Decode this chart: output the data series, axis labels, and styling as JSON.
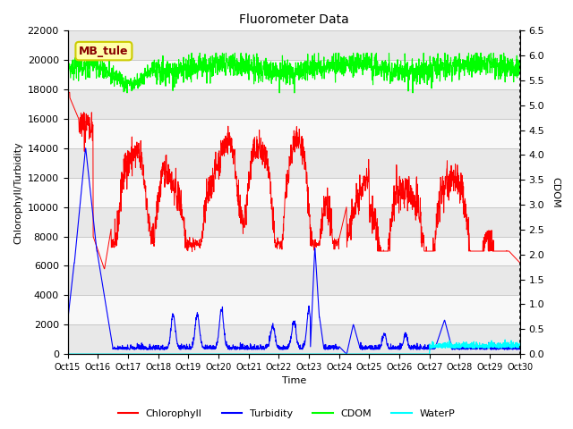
{
  "title": "Fluorometer Data",
  "xlabel": "Time",
  "ylabel_left": "Chlorophyll/Turbidity",
  "ylabel_right": "CDOM",
  "annotation": "MB_tule",
  "ylim_left": [
    0,
    22000
  ],
  "ylim_right": [
    0.0,
    6.5
  ],
  "yticks_left": [
    0,
    2000,
    4000,
    6000,
    8000,
    10000,
    12000,
    14000,
    16000,
    18000,
    20000,
    22000
  ],
  "yticks_right": [
    0.0,
    0.5,
    1.0,
    1.5,
    2.0,
    2.5,
    3.0,
    3.5,
    4.0,
    4.5,
    5.0,
    5.5,
    6.0,
    6.5
  ],
  "xtick_labels": [
    "Oct 15",
    "Oct 16",
    "Oct 17",
    "Oct 18",
    "Oct 19",
    "Oct 20",
    "Oct 21",
    "Oct 22",
    "Oct 23",
    "Oct 24",
    "Oct 25",
    "Oct 26",
    "Oct 27",
    "Oct 28",
    "Oct 29",
    "Oct 30"
  ],
  "colors": {
    "chlorophyll": "#ff0000",
    "turbidity": "#0000ff",
    "cdom": "#00ff00",
    "waterp": "#00ffff",
    "background": "#ffffff",
    "grid": "#c8c8c8",
    "band1": "#e8e8e8",
    "band2": "#f8f8f8"
  },
  "legend_labels": [
    "Chlorophyll",
    "Turbidity",
    "CDOM",
    "WaterP"
  ],
  "n_points": 2000,
  "annotation_facecolor": "#ffffaa",
  "annotation_edgecolor": "#cccc00",
  "annotation_textcolor": "#880000",
  "title_fontsize": 10,
  "label_fontsize": 8,
  "tick_fontsize": 8
}
